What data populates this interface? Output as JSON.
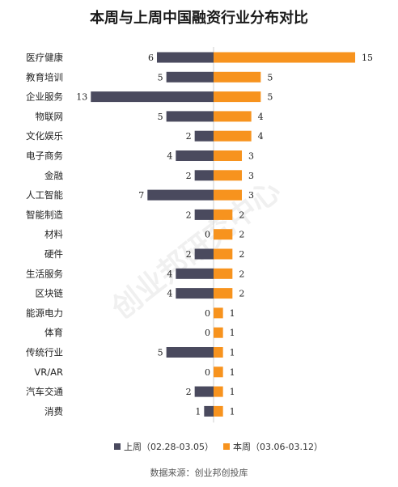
{
  "chart_data": {
    "type": "bar",
    "orientation": "horizontal-diverging",
    "title": "本周与上周中国融资行业分布对比",
    "categories": [
      "医疗健康",
      "教育培训",
      "企业服务",
      "物联网",
      "文化娱乐",
      "电子商务",
      "金融",
      "人工智能",
      "智能制造",
      "材料",
      "硬件",
      "生活服务",
      "区块链",
      "能源电力",
      "体育",
      "传统行业",
      "VR/AR",
      "汽车交通",
      "消费"
    ],
    "series": [
      {
        "name": "上周（02.28-03.05）",
        "color": "#4a4a5e",
        "direction": "left",
        "values": [
          6,
          5,
          13,
          5,
          2,
          4,
          2,
          7,
          2,
          0,
          2,
          4,
          4,
          0,
          0,
          5,
          0,
          2,
          1
        ]
      },
      {
        "name": "本周（03.06-03.12）",
        "color": "#f7931e",
        "direction": "right",
        "values": [
          15,
          5,
          5,
          4,
          4,
          3,
          3,
          3,
          2,
          2,
          2,
          2,
          2,
          1,
          1,
          1,
          1,
          1,
          1
        ]
      }
    ],
    "xlim": [
      0,
      15
    ],
    "legend_position": "bottom",
    "grid": false
  },
  "source": "数据来源：创业邦创投库",
  "watermark": "创业邦研究中心"
}
